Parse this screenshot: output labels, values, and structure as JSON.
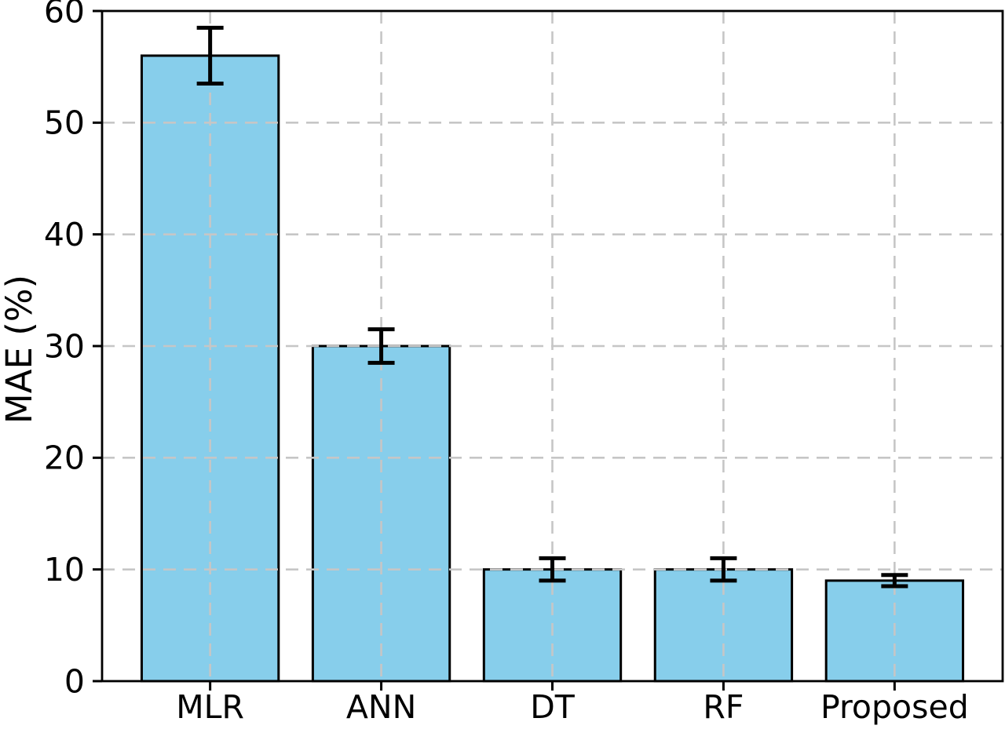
{
  "chart_data": {
    "type": "bar",
    "title": "",
    "categories": [
      "MLR",
      "ANN",
      "DT",
      "RF",
      "Proposed"
    ],
    "values": [
      56,
      30,
      10,
      10,
      9
    ],
    "errors": [
      2.5,
      1.5,
      1.0,
      1.0,
      0.5
    ],
    "xlabel": "",
    "ylabel": "MAE (%)",
    "ylim": [
      0,
      60
    ],
    "yticks": [
      0,
      10,
      20,
      30,
      40,
      50,
      60
    ],
    "grid": true,
    "grid_style": "dashed",
    "grid_axes": "both",
    "legend": "none",
    "bar_color": "#87CEEB",
    "bar_edge_color": "#000000",
    "error_color": "#000000",
    "grid_color": "#c6c6c6",
    "axis_color": "#000000",
    "background_color": "#ffffff"
  }
}
